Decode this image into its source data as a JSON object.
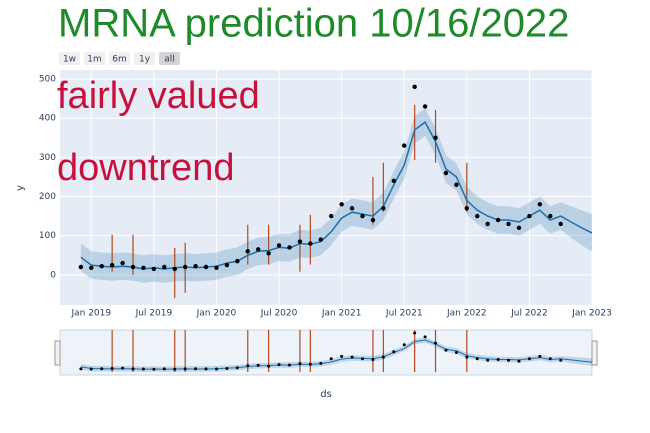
{
  "chart_data": {
    "type": "line",
    "title": "MRNA prediction 10/16/2022",
    "title_color": "#1e8a2a",
    "buttons": [
      "1w",
      "1m",
      "6m",
      "1y",
      "all"
    ],
    "active_button": 4,
    "annotations": [
      {
        "text": "fairly valued",
        "color": "#c8103c"
      },
      {
        "text": "downtrend",
        "color": "#c8103c"
      }
    ],
    "xlabel": "ds",
    "ylabel": "y",
    "xlim": [
      "2018-10",
      "2023-01"
    ],
    "xticks": [
      {
        "value": "2019-01",
        "label": "Jan 2019"
      },
      {
        "value": "2019-07",
        "label": "Jul 2019"
      },
      {
        "value": "2020-01",
        "label": "Jan 2020"
      },
      {
        "value": "2020-07",
        "label": "Jul 2020"
      },
      {
        "value": "2021-01",
        "label": "Jan 2021"
      },
      {
        "value": "2021-07",
        "label": "Jul 2021"
      },
      {
        "value": "2022-01",
        "label": "Jan 2022"
      },
      {
        "value": "2022-07",
        "label": "Jul 2022"
      },
      {
        "value": "2023-01",
        "label": "Jan 2023"
      }
    ],
    "ylim": [
      -77,
      523
    ],
    "yticks": [
      0,
      100,
      200,
      300,
      400,
      500
    ],
    "grid": true,
    "x": [
      "2018-12",
      "2019-01",
      "2019-02",
      "2019-03",
      "2019-04",
      "2019-05",
      "2019-06",
      "2019-07",
      "2019-08",
      "2019-09",
      "2019-10",
      "2019-11",
      "2019-12",
      "2020-01",
      "2020-02",
      "2020-03",
      "2020-04",
      "2020-05",
      "2020-06",
      "2020-07",
      "2020-08",
      "2020-09",
      "2020-10",
      "2020-11",
      "2020-12",
      "2021-01",
      "2021-02",
      "2021-03",
      "2021-04",
      "2021-05",
      "2021-06",
      "2021-07",
      "2021-08",
      "2021-09",
      "2021-10",
      "2021-11",
      "2021-12",
      "2022-01",
      "2022-02",
      "2022-03",
      "2022-04",
      "2022-05",
      "2022-06",
      "2022-07",
      "2022-08",
      "2022-09",
      "2022-10",
      "2022-11",
      "2022-12",
      "2023-01"
    ],
    "actual": {
      "color": "#000000",
      "values": [
        20,
        18,
        22,
        25,
        30,
        20,
        18,
        15,
        20,
        15,
        20,
        22,
        20,
        18,
        25,
        35,
        60,
        65,
        55,
        75,
        70,
        85,
        80,
        90,
        150,
        180,
        170,
        150,
        140,
        170,
        240,
        330,
        480,
        430,
        350,
        260,
        230,
        170,
        150,
        130,
        140,
        130,
        120,
        150,
        180,
        150,
        130,
        null,
        null,
        null
      ]
    },
    "yhat": {
      "color": "#1f6fa8",
      "values": [
        45,
        25,
        22,
        20,
        22,
        20,
        15,
        18,
        15,
        18,
        20,
        18,
        20,
        22,
        30,
        35,
        50,
        60,
        62,
        70,
        68,
        80,
        78,
        85,
        110,
        145,
        160,
        155,
        150,
        175,
        230,
        280,
        370,
        390,
        340,
        270,
        250,
        190,
        165,
        150,
        140,
        140,
        135,
        150,
        165,
        140,
        150,
        135,
        120,
        107
      ]
    },
    "upper": {
      "values": [
        80,
        60,
        57,
        55,
        57,
        55,
        50,
        53,
        50,
        53,
        55,
        53,
        55,
        57,
        65,
        70,
        85,
        95,
        97,
        105,
        103,
        115,
        113,
        120,
        145,
        180,
        195,
        190,
        185,
        210,
        265,
        315,
        405,
        425,
        375,
        305,
        285,
        225,
        200,
        185,
        175,
        175,
        170,
        185,
        200,
        175,
        185,
        175,
        165,
        155
      ]
    },
    "lower": {
      "values": [
        10,
        -10,
        -13,
        -15,
        -13,
        -15,
        -20,
        -17,
        -20,
        -17,
        -15,
        -17,
        -15,
        -13,
        -5,
        0,
        15,
        25,
        27,
        35,
        33,
        45,
        43,
        50,
        75,
        110,
        125,
        120,
        115,
        140,
        195,
        245,
        335,
        355,
        305,
        235,
        215,
        155,
        130,
        115,
        105,
        105,
        100,
        115,
        130,
        105,
        115,
        95,
        75,
        60
      ]
    },
    "band_color": "rgba(31,111,168,0.22)",
    "changepoint_color": "#b5471c",
    "changepoints": [
      {
        "x": "2019-03",
        "ylow": 8,
        "yhigh": 102
      },
      {
        "x": "2019-05",
        "ylow": 0,
        "yhigh": 102
      },
      {
        "x": "2019-09",
        "ylow": -59,
        "yhigh": 69
      },
      {
        "x": "2019-10",
        "ylow": -46,
        "yhigh": 82
      },
      {
        "x": "2020-04",
        "ylow": 26,
        "yhigh": 128
      },
      {
        "x": "2020-06",
        "ylow": 26,
        "yhigh": 128
      },
      {
        "x": "2020-09",
        "ylow": 8,
        "yhigh": 128
      },
      {
        "x": "2020-10",
        "ylow": 26,
        "yhigh": 153
      },
      {
        "x": "2021-04",
        "ylow": 128,
        "yhigh": 250
      },
      {
        "x": "2021-05",
        "ylow": 161,
        "yhigh": 286
      },
      {
        "x": "2021-08",
        "ylow": 293,
        "yhigh": 434
      },
      {
        "x": "2021-10",
        "ylow": 286,
        "yhigh": 421
      },
      {
        "x": "2022-01",
        "ylow": 161,
        "yhigh": 286
      }
    ]
  }
}
